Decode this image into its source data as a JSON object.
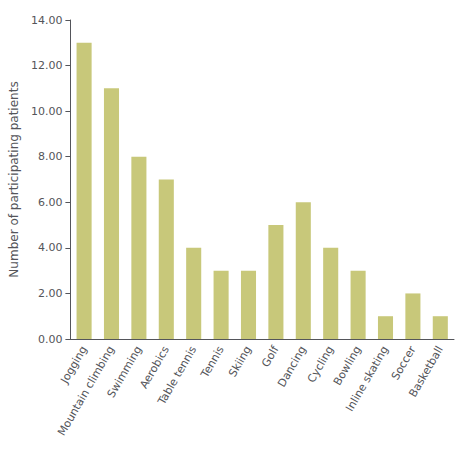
{
  "chart_data": {
    "type": "bar",
    "categories": [
      "Jogging",
      "Mountain climbing",
      "Swimming",
      "Aerobics",
      "Table tennis",
      "Tennis",
      "Skiing",
      "Golf",
      "Dancing",
      "Cycling",
      "Bowling",
      "Inline skating",
      "Soccer",
      "Basketball"
    ],
    "values": [
      13,
      11,
      8,
      7,
      4,
      3,
      3,
      5,
      6,
      4,
      3,
      1,
      2,
      1
    ],
    "color": "#c8c87a",
    "ylabel": "Number of participating patients",
    "ylim": [
      0,
      14
    ],
    "yticks": [
      {
        "value": 0,
        "label": "0.00"
      },
      {
        "value": 2,
        "label": "2.00"
      },
      {
        "value": 4,
        "label": "4.00"
      },
      {
        "value": 6,
        "label": "6.00"
      },
      {
        "value": 8,
        "label": "8.00"
      },
      {
        "value": 10,
        "label": "10.00"
      },
      {
        "value": 12,
        "label": "12.00"
      },
      {
        "value": 14,
        "label": "14.00"
      }
    ],
    "grid": false
  }
}
